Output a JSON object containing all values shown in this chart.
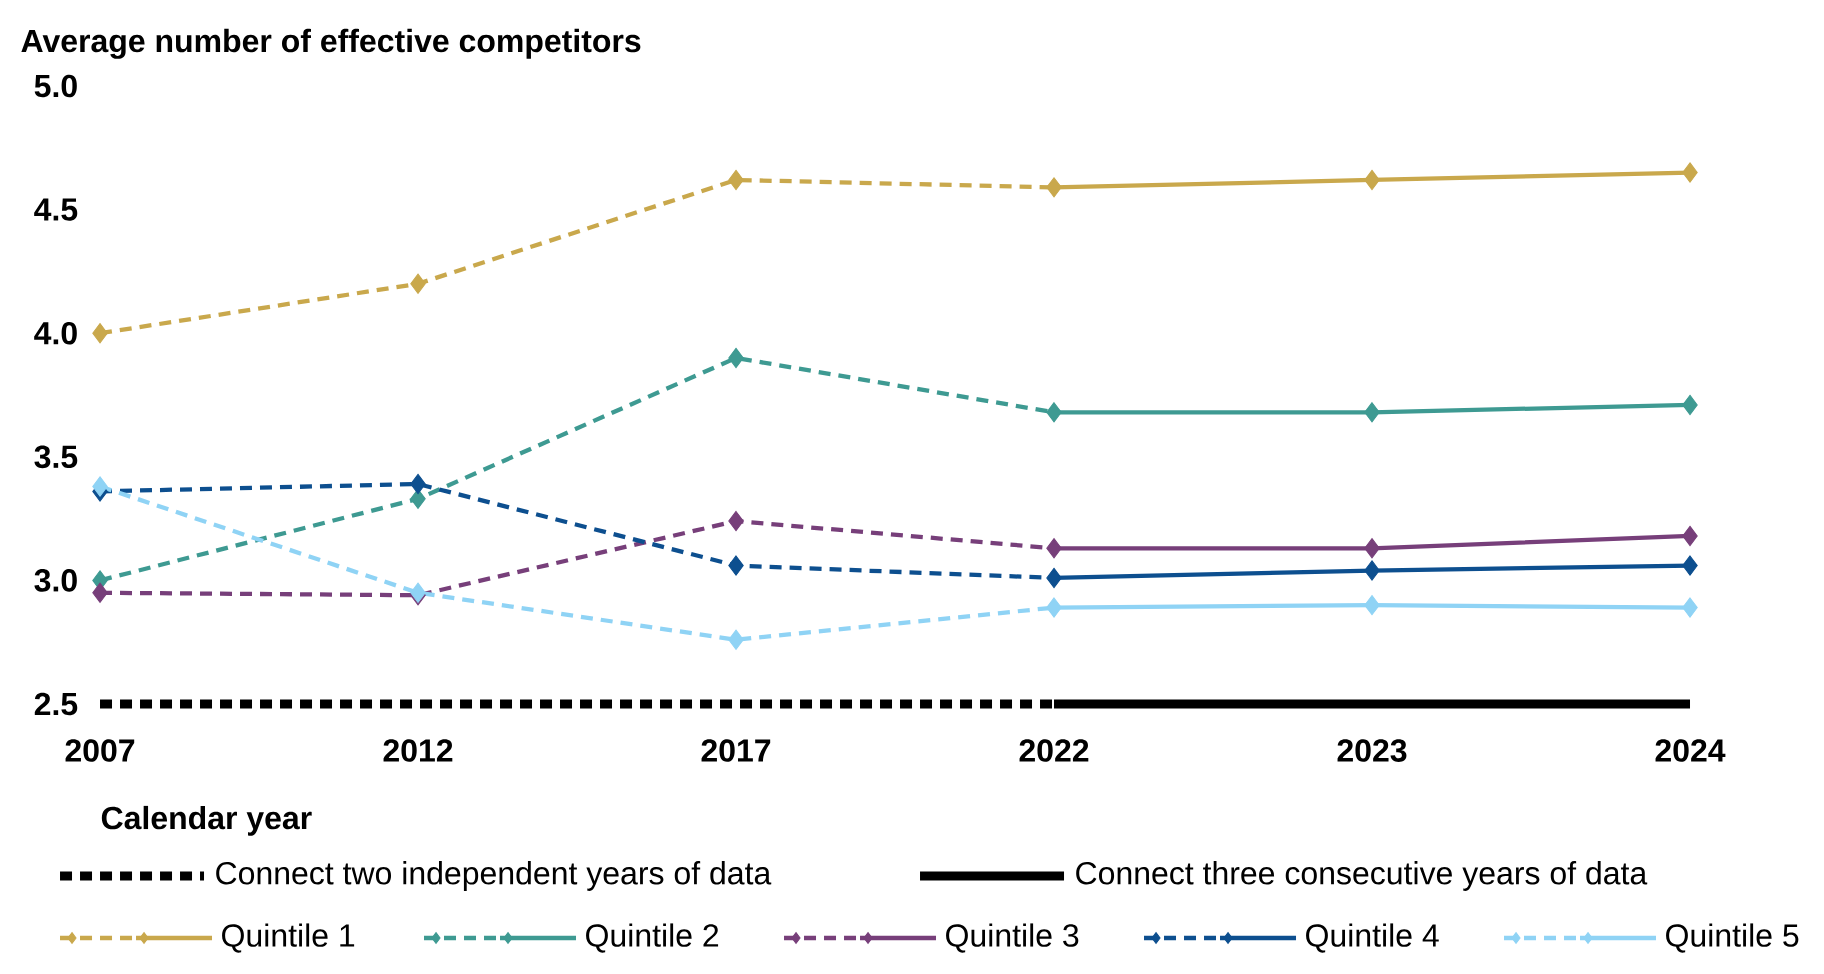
{
  "chart_data": {
    "type": "line",
    "ylabel": "Average number of effective competitors",
    "xlabel": "Calendar year",
    "categories": [
      "2007",
      "2012",
      "2017",
      "2022",
      "2023",
      "2024"
    ],
    "ylim": [
      2.5,
      5.0
    ],
    "yticks": [
      2.5,
      {
        "value": 3.0,
        "label": "3.0"
      },
      3.5,
      {
        "value": 4.0,
        "label": "4.0"
      },
      4.5,
      {
        "value": 5.0,
        "label": "5.0"
      }
    ],
    "legend": "bottom",
    "marker": "diamond",
    "series": [
      {
        "name": "Connect two independent years of data",
        "color": "#000000",
        "line_style": "dashed",
        "marker": "none",
        "values": [
          2.5,
          2.5,
          2.5,
          2.5,
          null,
          null
        ]
      },
      {
        "name": "Connect three consecutive years of data",
        "color": "#000000",
        "line_style": "solid",
        "marker": "none",
        "values": [
          null,
          null,
          null,
          2.5,
          2.5,
          2.5
        ]
      },
      {
        "name": "Quintile 1",
        "color": "#c9a84c",
        "values": [
          4.0,
          4.2,
          4.62,
          4.59,
          4.62,
          4.65
        ]
      },
      {
        "name": "Quintile 2",
        "color": "#3e9a92",
        "values": [
          3.0,
          3.33,
          3.9,
          3.68,
          3.68,
          3.71
        ]
      },
      {
        "name": "Quintile 3",
        "color": "#773f7a",
        "values": [
          2.95,
          2.94,
          3.24,
          3.13,
          3.13,
          3.18
        ]
      },
      {
        "name": "Quintile 4",
        "color": "#0d4f8f",
        "values": [
          3.36,
          3.39,
          3.06,
          3.01,
          3.04,
          3.06
        ]
      },
      {
        "name": "Quintile 5",
        "color": "#8fd3f5",
        "values": [
          3.38,
          2.95,
          2.76,
          2.89,
          2.9,
          2.89
        ]
      }
    ]
  }
}
